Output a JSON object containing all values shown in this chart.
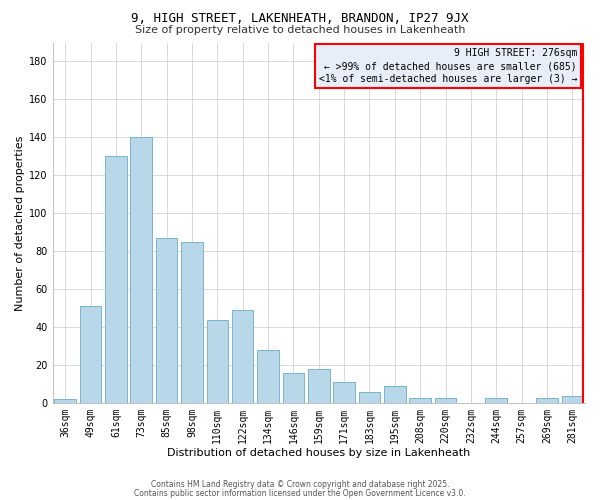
{
  "title": "9, HIGH STREET, LAKENHEATH, BRANDON, IP27 9JX",
  "subtitle": "Size of property relative to detached houses in Lakenheath",
  "xlabel": "Distribution of detached houses by size in Lakenheath",
  "ylabel": "Number of detached properties",
  "categories": [
    "36sqm",
    "49sqm",
    "61sqm",
    "73sqm",
    "85sqm",
    "98sqm",
    "110sqm",
    "122sqm",
    "134sqm",
    "146sqm",
    "159sqm",
    "171sqm",
    "183sqm",
    "195sqm",
    "208sqm",
    "220sqm",
    "232sqm",
    "244sqm",
    "257sqm",
    "269sqm",
    "281sqm"
  ],
  "values": [
    2,
    51,
    130,
    140,
    87,
    85,
    44,
    49,
    28,
    16,
    18,
    11,
    6,
    9,
    3,
    3,
    0,
    3,
    0,
    3,
    4
  ],
  "bar_color": "#b8d8ea",
  "bar_edge_color": "#7bb4cc",
  "annotation_box_text": "9 HIGH STREET: 276sqm\n← >99% of detached houses are smaller (685)\n<1% of semi-detached houses are larger (3) →",
  "annotation_box_color": "#e8eef8",
  "annotation_box_edge_color": "red",
  "ylim": [
    0,
    190
  ],
  "yticks": [
    0,
    20,
    40,
    60,
    80,
    100,
    120,
    140,
    160,
    180
  ],
  "footer_line1": "Contains HM Land Registry data © Crown copyright and database right 2025.",
  "footer_line2": "Contains public sector information licensed under the Open Government Licence v3.0.",
  "background_color": "#ffffff",
  "grid_color": "#cccccc",
  "title_fontsize": 9,
  "subtitle_fontsize": 8,
  "xlabel_fontsize": 8,
  "ylabel_fontsize": 8,
  "tick_fontsize": 7,
  "annot_fontsize": 7
}
